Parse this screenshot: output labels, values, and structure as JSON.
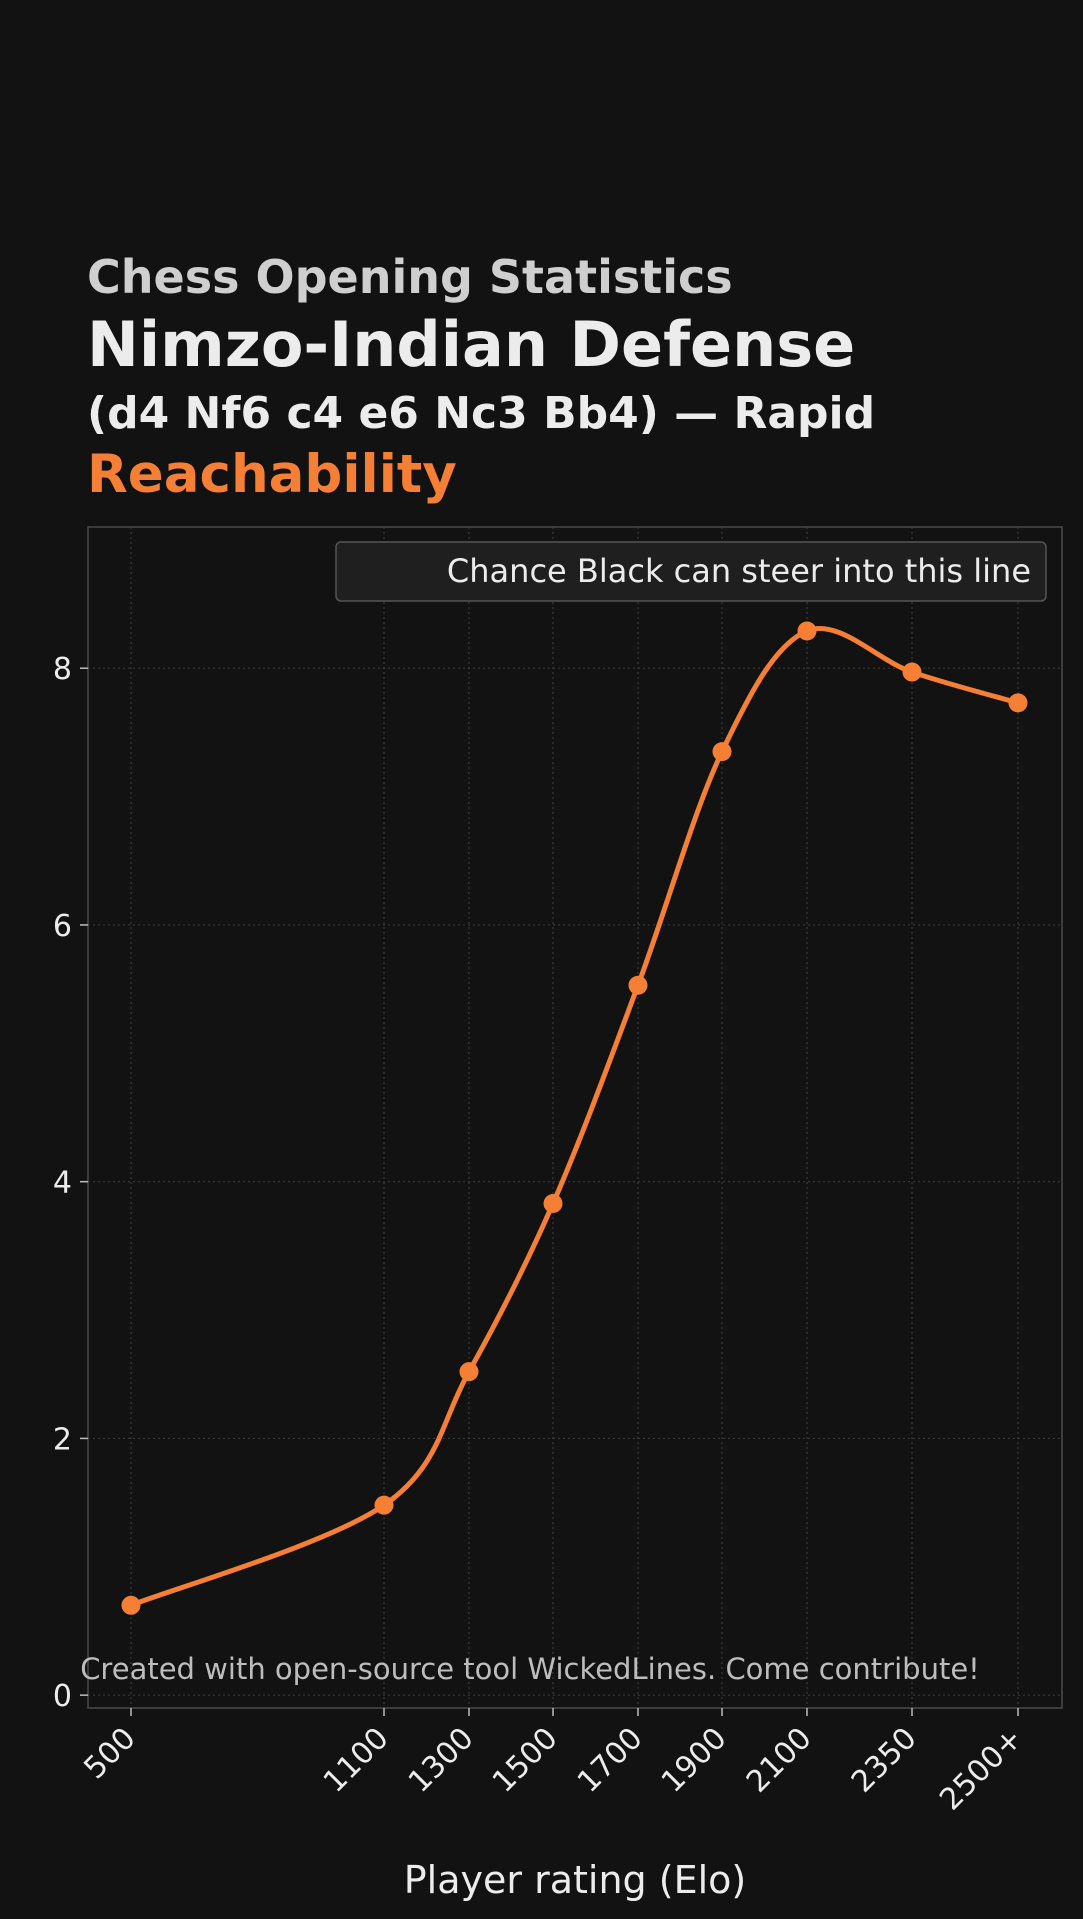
{
  "header": {
    "supertitle": "Chess Opening Statistics",
    "title": "Nimzo-Indian Defense",
    "subtitle": "(d4 Nf6 c4 e6 Nc3 Bb4) — Rapid",
    "metric": "Reachability"
  },
  "watermark": "Created with open-source tool WickedLines. Come contribute!",
  "colors": {
    "background": "#121212",
    "accent": "#f47f35",
    "grid": "#3a3a3a"
  },
  "chart_data": {
    "type": "line",
    "xlabel": "Player rating (Elo)",
    "ylabel": "",
    "x": [
      500,
      1100,
      1300,
      1500,
      1700,
      1900,
      2100,
      2350,
      2500
    ],
    "x_tick_labels": [
      "500",
      "1100",
      "1300",
      "1500",
      "1700",
      "1900",
      "2100",
      "2350",
      "2500+"
    ],
    "y_ticks": [
      0,
      2,
      4,
      6,
      8
    ],
    "ylim": [
      -0.1,
      9.1
    ],
    "grid": true,
    "legend_position": "top-right",
    "series": [
      {
        "name": "Chance Black can steer into this line",
        "color": "#f47f35",
        "values": [
          0.7,
          1.48,
          2.52,
          3.83,
          5.53,
          7.35,
          8.29,
          7.97,
          7.73
        ]
      }
    ]
  }
}
